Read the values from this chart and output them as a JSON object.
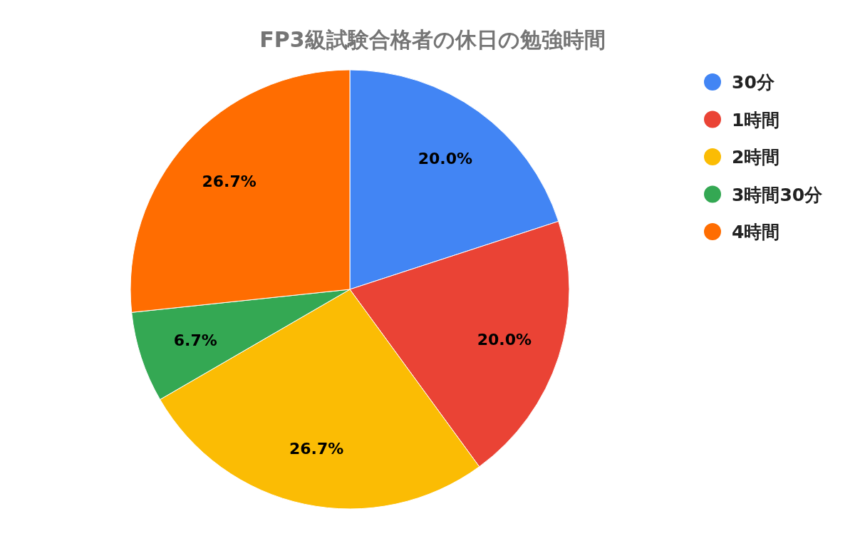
{
  "chart_data": {
    "type": "pie",
    "title": "FP3級試験合格者の休日の勉強時間",
    "categories": [
      "30分",
      "1時間",
      "2時間",
      "3時間30分",
      "4時間"
    ],
    "values": [
      20.0,
      20.0,
      26.7,
      6.7,
      26.7
    ],
    "colors": [
      "#4285f4",
      "#ea4335",
      "#fbbc04",
      "#34a853",
      "#ff6d01"
    ],
    "value_labels": [
      "20.0%",
      "20.0%",
      "26.7%",
      "6.7%",
      "26.7%"
    ],
    "legend": "right"
  }
}
